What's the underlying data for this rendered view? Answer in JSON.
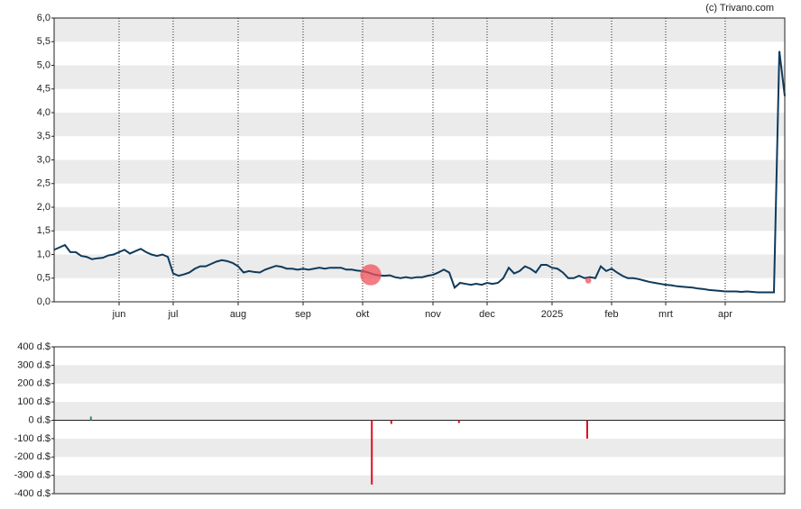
{
  "chart_data": [
    {
      "type": "line",
      "source": "(c) Trivano.com",
      "xlim": [
        0,
        135
      ],
      "xticks": [
        {
          "value": 12,
          "label": "jun"
        },
        {
          "value": 22,
          "label": "jul"
        },
        {
          "value": 34,
          "label": "aug"
        },
        {
          "value": 46,
          "label": "sep"
        },
        {
          "value": 57,
          "label": "okt"
        },
        {
          "value": 70,
          "label": "nov"
        },
        {
          "value": 80,
          "label": "dec"
        },
        {
          "value": 92,
          "label": "2025"
        },
        {
          "value": 103,
          "label": "feb"
        },
        {
          "value": 113,
          "label": "mrt"
        },
        {
          "value": 124,
          "label": "apr"
        }
      ],
      "ylim": [
        0,
        6
      ],
      "yticks": [
        {
          "value": 0,
          "label": "0,0"
        },
        {
          "value": 0.5,
          "label": "0,5"
        },
        {
          "value": 1,
          "label": "1,0"
        },
        {
          "value": 1.5,
          "label": "1,5"
        },
        {
          "value": 2,
          "label": "2,0"
        },
        {
          "value": 2.5,
          "label": "2,5"
        },
        {
          "value": 3,
          "label": "3,0"
        },
        {
          "value": 3.5,
          "label": "3,5"
        },
        {
          "value": 4,
          "label": "4,0"
        },
        {
          "value": 4.5,
          "label": "4,5"
        },
        {
          "value": 5,
          "label": "5,0"
        },
        {
          "value": 5.5,
          "label": "5,5"
        },
        {
          "value": 6,
          "label": "6,0"
        }
      ],
      "grid": true,
      "series": [
        {
          "color": "#0e3a5c",
          "values": [
            1.1,
            1.15,
            1.2,
            1.05,
            1.05,
            0.97,
            0.95,
            0.9,
            0.92,
            0.93,
            0.98,
            1.0,
            1.05,
            1.1,
            1.02,
            1.07,
            1.12,
            1.05,
            1.0,
            0.97,
            1.0,
            0.95,
            0.6,
            0.55,
            0.58,
            0.62,
            0.7,
            0.75,
            0.75,
            0.8,
            0.85,
            0.88,
            0.86,
            0.82,
            0.75,
            0.62,
            0.65,
            0.63,
            0.62,
            0.68,
            0.72,
            0.76,
            0.74,
            0.7,
            0.7,
            0.68,
            0.7,
            0.68,
            0.7,
            0.72,
            0.7,
            0.72,
            0.72,
            0.72,
            0.68,
            0.68,
            0.66,
            0.65,
            0.62,
            0.58,
            0.56,
            0.55,
            0.56,
            0.52,
            0.5,
            0.52,
            0.5,
            0.52,
            0.52,
            0.55,
            0.57,
            0.62,
            0.68,
            0.62,
            0.3,
            0.4,
            0.38,
            0.36,
            0.38,
            0.36,
            0.4,
            0.38,
            0.4,
            0.5,
            0.72,
            0.6,
            0.65,
            0.75,
            0.7,
            0.62,
            0.78,
            0.78,
            0.72,
            0.7,
            0.62,
            0.5,
            0.5,
            0.55,
            0.5,
            0.52,
            0.5,
            0.75,
            0.65,
            0.7,
            0.62,
            0.55,
            0.5,
            0.5,
            0.48,
            0.45,
            0.42,
            0.4,
            0.38,
            0.36,
            0.35,
            0.33,
            0.32,
            0.31,
            0.3,
            0.28,
            0.27,
            0.25,
            0.24,
            0.23,
            0.22,
            0.22,
            0.22,
            0.21,
            0.22,
            0.21,
            0.2,
            0.2,
            0.2,
            0.2,
            5.3,
            4.35
          ]
        }
      ],
      "markers": {
        "color": "#f0505a",
        "x": [
          58.5,
          98.7
        ],
        "values": [
          0.57,
          0.45
        ]
      }
    },
    {
      "type": "bar",
      "xlim": [
        0,
        135
      ],
      "ylim": [
        -400,
        400
      ],
      "yticks": [
        {
          "value": -400,
          "label": "-400 d.$"
        },
        {
          "value": -300,
          "label": "-300 d.$"
        },
        {
          "value": -200,
          "label": "-200 d.$"
        },
        {
          "value": -100,
          "label": "-100 d.$"
        },
        {
          "value": 0,
          "label": "0 d.$"
        },
        {
          "value": 100,
          "label": "100 d.$"
        },
        {
          "value": 200,
          "label": "200 d.$"
        },
        {
          "value": 300,
          "label": "300 d.$"
        },
        {
          "value": 400,
          "label": "400 d.$"
        }
      ],
      "grid": true,
      "x": [
        6.8,
        58.7,
        62.3,
        74.8,
        98.5
      ],
      "values": [
        20,
        -350,
        -20,
        -15,
        -100
      ],
      "colors": [
        "#2e8b57",
        "#e0101e",
        "#e0101e",
        "#e0101e",
        "#e0101e"
      ]
    }
  ]
}
